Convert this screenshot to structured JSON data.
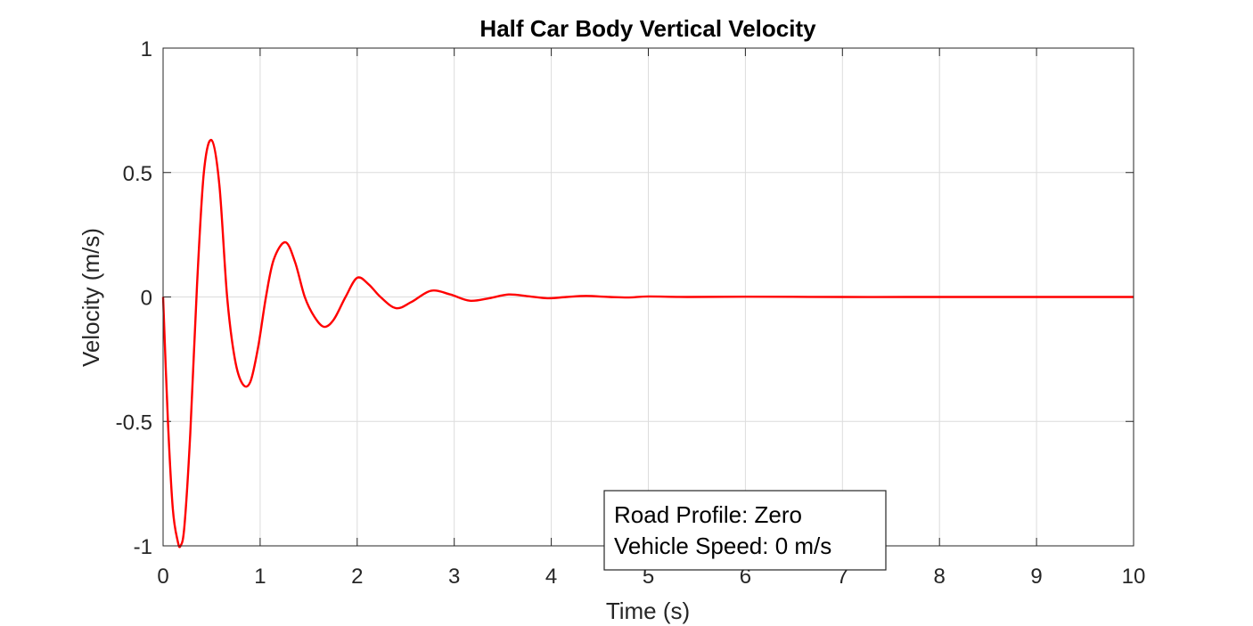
{
  "chart_data": {
    "type": "line",
    "title": "Half Car Body Vertical Velocity",
    "xlabel": "Time (s)",
    "ylabel": "Velocity (m/s)",
    "xlim": [
      0,
      10
    ],
    "ylim": [
      -1,
      1
    ],
    "xticks": [
      0,
      1,
      2,
      3,
      4,
      5,
      6,
      7,
      8,
      9,
      10
    ],
    "xtick_labels": [
      "0",
      "1",
      "2",
      "3",
      "4",
      "5",
      "6",
      "7",
      "8",
      "9",
      "10"
    ],
    "yticks": [
      -1,
      -0.5,
      0,
      0.5,
      1
    ],
    "ytick_labels": [
      "-1",
      "-0.5",
      "0",
      "0.5",
      "1"
    ],
    "grid": true,
    "series": [
      {
        "color": "#ff0000",
        "x": [
          0,
          0.05,
          0.1,
          0.15,
          0.18,
          0.22,
          0.28,
          0.35,
          0.42,
          0.5,
          0.58,
          0.66,
          0.74,
          0.82,
          0.9,
          0.98,
          1.06,
          1.14,
          1.26,
          1.36,
          1.46,
          1.56,
          1.66,
          1.76,
          1.88,
          2.0,
          2.12,
          2.24,
          2.4,
          2.56,
          2.76,
          2.96,
          3.16,
          3.36,
          3.56,
          3.76,
          3.96,
          4.16,
          4.36,
          4.6,
          4.8,
          5.0,
          5.4,
          6.0,
          7.0,
          8.0,
          9.0,
          10.0
        ],
        "y": [
          0,
          -0.5,
          -0.85,
          -0.98,
          -1.0,
          -0.92,
          -0.55,
          0.05,
          0.5,
          0.63,
          0.45,
          0.0,
          -0.25,
          -0.35,
          -0.34,
          -0.2,
          0.0,
          0.15,
          0.22,
          0.14,
          0.0,
          -0.08,
          -0.12,
          -0.09,
          0.0,
          0.077,
          0.05,
          0.0,
          -0.045,
          -0.02,
          0.025,
          0.01,
          -0.015,
          -0.005,
          0.01,
          0.003,
          -0.005,
          0.0,
          0.004,
          0.0,
          -0.002,
          0.002,
          0.0,
          0.001,
          0.0,
          0.0,
          0.0,
          0.0
        ]
      }
    ],
    "annotation": {
      "lines": [
        "Road Profile: Zero",
        "Vehicle Speed: 0 m/s"
      ]
    }
  }
}
